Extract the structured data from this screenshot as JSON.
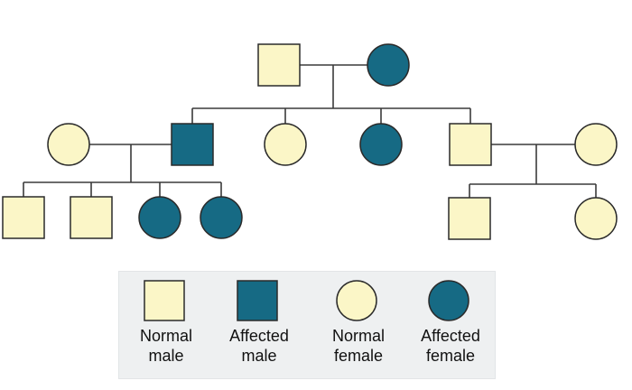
{
  "colors": {
    "normal_fill": "#fbf6c7",
    "affected_fill": "#166a84",
    "stroke": "#2a2a2a",
    "line": "#3a3a3a"
  },
  "pedigree": {
    "generations": [
      {
        "id": "I",
        "individuals": [
          {
            "id": "I-1",
            "sex": "male",
            "affected": false
          },
          {
            "id": "I-2",
            "sex": "female",
            "affected": true
          }
        ]
      },
      {
        "id": "II",
        "individuals": [
          {
            "id": "II-spouse-1",
            "sex": "female",
            "affected": false
          },
          {
            "id": "II-1",
            "sex": "male",
            "affected": true
          },
          {
            "id": "II-2",
            "sex": "female",
            "affected": false
          },
          {
            "id": "II-3",
            "sex": "female",
            "affected": true
          },
          {
            "id": "II-4",
            "sex": "male",
            "affected": false
          },
          {
            "id": "II-spouse-2",
            "sex": "female",
            "affected": false
          }
        ]
      },
      {
        "id": "III",
        "individuals": [
          {
            "id": "III-1",
            "sex": "male",
            "affected": false
          },
          {
            "id": "III-2",
            "sex": "male",
            "affected": false
          },
          {
            "id": "III-3",
            "sex": "female",
            "affected": true
          },
          {
            "id": "III-4",
            "sex": "female",
            "affected": true
          },
          {
            "id": "III-5",
            "sex": "male",
            "affected": false
          },
          {
            "id": "III-6",
            "sex": "female",
            "affected": false
          }
        ]
      }
    ]
  },
  "legend": {
    "items": [
      {
        "symbol": "square",
        "affected": false,
        "line1": "Normal",
        "line2": "male"
      },
      {
        "symbol": "square",
        "affected": true,
        "line1": "Affected",
        "line2": "male"
      },
      {
        "symbol": "circle",
        "affected": false,
        "line1": "Normal",
        "line2": "female"
      },
      {
        "symbol": "circle",
        "affected": true,
        "line1": "Affected",
        "line2": "female"
      }
    ]
  }
}
